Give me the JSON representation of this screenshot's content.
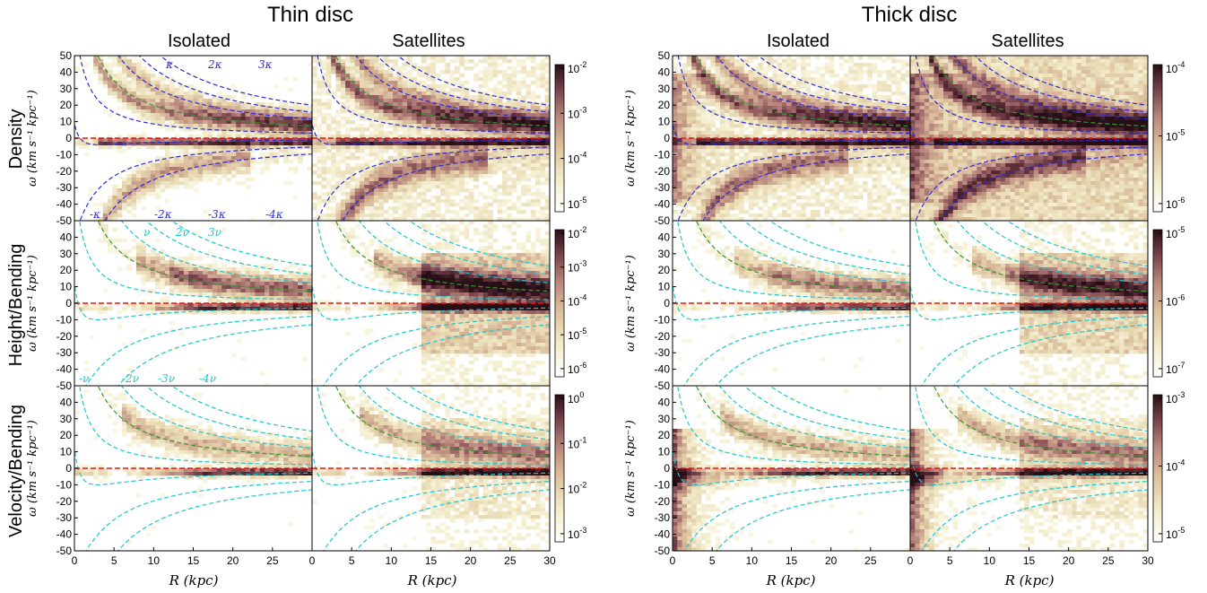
{
  "figure": {
    "groups": [
      "Thin disc",
      "Thick disc"
    ],
    "columns": [
      "Isolated",
      "Satellites"
    ],
    "rows": [
      "Density",
      "Height/Bending",
      "Velocity/Bending"
    ],
    "xlabel": "R (kpc)",
    "ylabel": "ω (km s⁻¹ kpc⁻¹)",
    "xticks": [
      "0",
      "5",
      "10",
      "15",
      "20",
      "25",
      "30"
    ],
    "yticks": [
      "50",
      "40",
      "30",
      "20",
      "10",
      "0",
      "-10",
      "-20",
      "-30",
      "-40",
      "-50"
    ],
    "xlim": [
      0,
      30
    ],
    "ylim": [
      -50,
      50
    ],
    "resonance_labels_density_top": [
      "κ",
      "2κ",
      "3κ"
    ],
    "resonance_labels_density_bottom": [
      "-κ",
      "-2κ",
      "-3κ",
      "-4κ"
    ],
    "resonance_labels_bending_top": [
      "ν",
      "2ν",
      "3ν"
    ],
    "resonance_labels_bending_bottom": [
      "-ν",
      "-2ν",
      "-3ν",
      "-4ν"
    ],
    "colorbars": {
      "thin": [
        {
          "row": "Density",
          "ticks": [
            "10-2",
            "10-3",
            "10-4",
            "10-5"
          ]
        },
        {
          "row": "Height/Bending",
          "ticks": [
            "10-2",
            "10-3",
            "10-4",
            "10-5",
            "10-6"
          ]
        },
        {
          "row": "Velocity/Bending",
          "ticks": [
            "100",
            "10-1",
            "10-2",
            "10-3"
          ]
        }
      ],
      "thick": [
        {
          "row": "Density",
          "ticks": [
            "10-4",
            "10-5",
            "10-6"
          ]
        },
        {
          "row": "Height/Bending",
          "ticks": [
            "10-5",
            "10-6",
            "10-7"
          ]
        },
        {
          "row": "Velocity/Bending",
          "ticks": [
            "10-3",
            "10-4",
            "10-5"
          ]
        }
      ]
    },
    "colors": {
      "cmap": [
        "#fbf8e6",
        "#eadcae",
        "#c9a08a",
        "#8c5a60",
        "#3a1a22"
      ],
      "kappa": "#2a2ad8",
      "nu": "#1cc6cc",
      "omega_p": "#2f9a2f",
      "zero": "#ee1111"
    }
  },
  "chart_data": {
    "type": "heatmap",
    "description_source": "12 power-spectrum panels: pattern speed ω vs radius R",
    "xlim": [
      0,
      30
    ],
    "ylim": [
      -50,
      50
    ],
    "curves": {
      "Omega": "rotation-curve angular frequency (green dashed)",
      "kappa_multiples": [
        1,
        2,
        3,
        -1,
        -2,
        -3,
        -4
      ],
      "nu_multiples": [
        1,
        2,
        3,
        -1,
        -2,
        -3,
        -4
      ],
      "zero_line": 0
    },
    "panels": [
      {
        "group": "Thin disc",
        "column": "Isolated",
        "row": "Density"
      },
      {
        "group": "Thin disc",
        "column": "Satellites",
        "row": "Density"
      },
      {
        "group": "Thin disc",
        "column": "Isolated",
        "row": "Height/Bending"
      },
      {
        "group": "Thin disc",
        "column": "Satellites",
        "row": "Height/Bending"
      },
      {
        "group": "Thin disc",
        "column": "Isolated",
        "row": "Velocity/Bending"
      },
      {
        "group": "Thin disc",
        "column": "Satellites",
        "row": "Velocity/Bending"
      },
      {
        "group": "Thick disc",
        "column": "Isolated",
        "row": "Density"
      },
      {
        "group": "Thick disc",
        "column": "Satellites",
        "row": "Density"
      },
      {
        "group": "Thick disc",
        "column": "Isolated",
        "row": "Height/Bending"
      },
      {
        "group": "Thick disc",
        "column": "Satellites",
        "row": "Height/Bending"
      },
      {
        "group": "Thick disc",
        "column": "Isolated",
        "row": "Velocity/Bending"
      },
      {
        "group": "Thick disc",
        "column": "Satellites",
        "row": "Velocity/Bending"
      }
    ]
  }
}
